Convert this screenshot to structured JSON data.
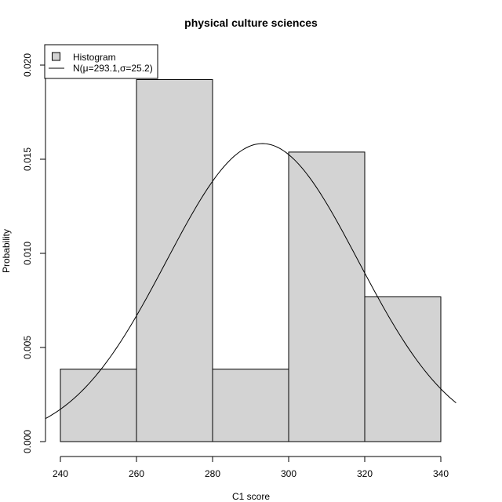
{
  "chart_data": {
    "type": "bar",
    "title": "physical culture sciences",
    "xlabel": "C1 score",
    "ylabel": "Probability",
    "xlim": [
      240,
      340
    ],
    "ylim": [
      0,
      0.02
    ],
    "x_ticks": [
      "240",
      "260",
      "280",
      "300",
      "320",
      "340"
    ],
    "y_ticks": [
      "0.000",
      "0.005",
      "0.010",
      "0.015",
      "0.020"
    ],
    "bins": [
      {
        "from": 240,
        "to": 260,
        "density": 0.00385
      },
      {
        "from": 260,
        "to": 280,
        "density": 0.01923
      },
      {
        "from": 280,
        "to": 300,
        "density": 0.00385
      },
      {
        "from": 300,
        "to": 320,
        "density": 0.01538
      },
      {
        "from": 320,
        "to": 340,
        "density": 0.00769
      }
    ],
    "normal_curve": {
      "mu": 293.1,
      "sigma": 25.2
    },
    "legend": {
      "position": "top-left",
      "entries": [
        "Histogram",
        "N(μ=293.1,σ=25.2)"
      ]
    },
    "colors": {
      "bar_fill": "#d3d3d3",
      "stroke": "#000000"
    }
  }
}
